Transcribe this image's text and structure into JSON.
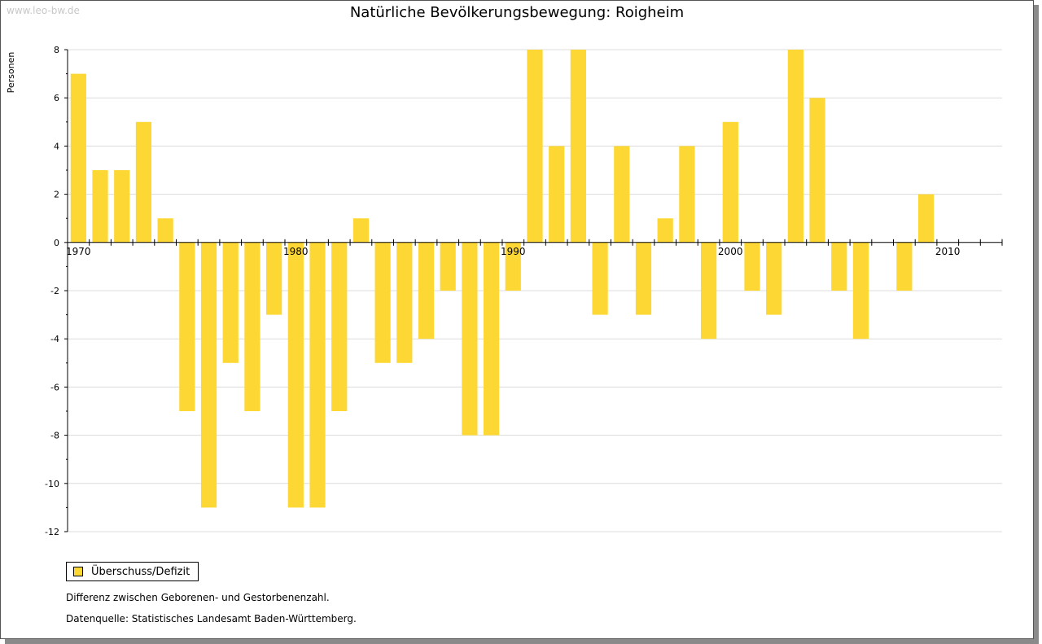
{
  "watermark": "www.leo-bw.de",
  "notes": {
    "description": "Differenz zwischen Geborenen- und Gestorbenenzahl.",
    "source": "Datenquelle: Statistisches Landesamt Baden-Württemberg."
  },
  "chart_data": {
    "type": "bar",
    "title": "Natürliche Bevölkerungsbewegung: Roigheim",
    "xlabel": "",
    "ylabel": "Personen",
    "ylim": [
      -12,
      8
    ],
    "yticks": [
      8,
      6,
      4,
      2,
      0,
      -2,
      -4,
      -6,
      -8,
      -10,
      -12
    ],
    "xlim": [
      1970,
      2013
    ],
    "xtick_labels": [
      "1970",
      "1980",
      "1990",
      "2000",
      "2010"
    ],
    "grid": true,
    "bar_color": "#fdd835",
    "legend": {
      "label": "Überschuss/Defizit",
      "position": "bottom-left"
    },
    "series": [
      {
        "name": "Überschuss/Defizit",
        "x": [
          1970,
          1971,
          1972,
          1973,
          1974,
          1975,
          1976,
          1977,
          1978,
          1979,
          1980,
          1981,
          1982,
          1983,
          1984,
          1985,
          1986,
          1987,
          1988,
          1989,
          1990,
          1991,
          1992,
          1993,
          1994,
          1995,
          1996,
          1997,
          1998,
          1999,
          2000,
          2001,
          2002,
          2003,
          2004,
          2005,
          2006,
          2007,
          2008,
          2009,
          2010,
          2011,
          2012
        ],
        "values": [
          7,
          3,
          3,
          5,
          1,
          -7,
          -11,
          -5,
          -7,
          -3,
          -11,
          -11,
          -7,
          1,
          -5,
          -5,
          -4,
          -2,
          -8,
          -8,
          -2,
          8,
          4,
          8,
          -3,
          4,
          -3,
          1,
          4,
          -4,
          5,
          -2,
          -3,
          8,
          6,
          -2,
          -4,
          0,
          -2,
          2,
          0,
          0,
          0
        ]
      }
    ]
  }
}
